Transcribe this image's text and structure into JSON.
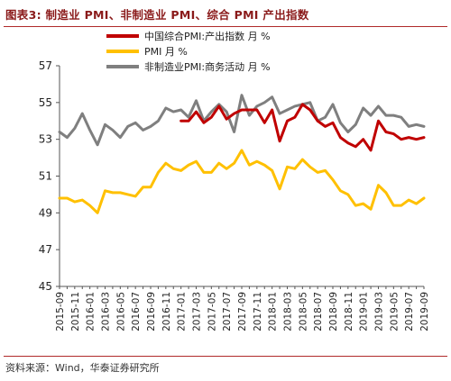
{
  "figure_title": "图表3:  制造业 PMI、非制造业 PMI、综合 PMI 产出指数",
  "source": "资料来源：Wind，华泰证券研究所",
  "chart_data": {
    "type": "line",
    "xlabel": "",
    "ylabel": "",
    "ylim": [
      45,
      57
    ],
    "yticks": [
      45,
      47,
      49,
      51,
      53,
      55,
      57
    ],
    "grid": false,
    "legend_position": "top-center",
    "x": [
      "2015-09",
      "2015-10",
      "2015-11",
      "2015-12",
      "2016-01",
      "2016-02",
      "2016-03",
      "2016-04",
      "2016-05",
      "2016-06",
      "2016-07",
      "2016-08",
      "2016-09",
      "2016-10",
      "2016-11",
      "2016-12",
      "2017-01",
      "2017-02",
      "2017-03",
      "2017-04",
      "2017-05",
      "2017-06",
      "2017-07",
      "2017-08",
      "2017-09",
      "2017-10",
      "2017-11",
      "2017-12",
      "2018-01",
      "2018-02",
      "2018-03",
      "2018-04",
      "2018-05",
      "2018-06",
      "2018-07",
      "2018-08",
      "2018-09",
      "2018-10",
      "2018-11",
      "2018-12",
      "2019-01",
      "2019-02",
      "2019-03",
      "2019-04",
      "2019-05",
      "2019-06",
      "2019-07",
      "2019-08",
      "2019-09"
    ],
    "x_tick_labels": [
      "2015-09",
      "2015-11",
      "2016-01",
      "2016-03",
      "2016-05",
      "2016-07",
      "2016-09",
      "2016-11",
      "2017-01",
      "2017-03",
      "2017-05",
      "2017-07",
      "2017-09",
      "2017-11",
      "2018-01",
      "2018-03",
      "2018-05",
      "2018-07",
      "2018-09",
      "2018-11",
      "2019-01",
      "2019-03",
      "2019-05",
      "2019-07",
      "2019-09"
    ],
    "series": [
      {
        "name": "中国综合PMI:产出指数 月 %",
        "color": "#c00000",
        "values": [
          null,
          null,
          null,
          null,
          null,
          null,
          null,
          null,
          null,
          null,
          null,
          null,
          null,
          null,
          null,
          null,
          54.0,
          54.0,
          54.5,
          53.9,
          54.2,
          54.8,
          54.1,
          54.4,
          54.6,
          54.6,
          54.6,
          53.9,
          54.6,
          52.9,
          54.0,
          54.2,
          54.9,
          54.6,
          54.0,
          53.7,
          53.9,
          53.1,
          52.8,
          52.6,
          53.0,
          52.4,
          54.0,
          53.4,
          53.3,
          53.0,
          53.1,
          53.0,
          53.1
        ]
      },
      {
        "name": "PMI 月 %",
        "color": "#ffc000",
        "values": [
          49.8,
          49.8,
          49.6,
          49.7,
          49.4,
          49.0,
          50.2,
          50.1,
          50.1,
          50.0,
          49.9,
          50.4,
          50.4,
          51.2,
          51.7,
          51.4,
          51.3,
          51.6,
          51.8,
          51.2,
          51.2,
          51.7,
          51.4,
          51.7,
          52.4,
          51.6,
          51.8,
          51.6,
          51.3,
          50.3,
          51.5,
          51.4,
          51.9,
          51.5,
          51.2,
          51.3,
          50.8,
          50.2,
          50.0,
          49.4,
          49.5,
          49.2,
          50.5,
          50.1,
          49.4,
          49.4,
          49.7,
          49.5,
          49.8
        ]
      },
      {
        "name": "非制造业PMI:商务活动 月 %",
        "color": "#7f7f7f",
        "values": [
          53.4,
          53.1,
          53.6,
          54.4,
          53.5,
          52.7,
          53.8,
          53.5,
          53.1,
          53.7,
          53.9,
          53.5,
          53.7,
          54.0,
          54.7,
          54.5,
          54.6,
          54.2,
          55.1,
          54.0,
          54.5,
          54.9,
          54.5,
          53.4,
          55.4,
          54.3,
          54.8,
          55.0,
          55.3,
          54.4,
          54.6,
          54.8,
          54.9,
          55.0,
          54.0,
          54.2,
          54.9,
          53.9,
          53.4,
          53.8,
          54.7,
          54.3,
          54.8,
          54.3,
          54.3,
          54.2,
          53.7,
          53.8,
          53.7
        ]
      }
    ]
  }
}
